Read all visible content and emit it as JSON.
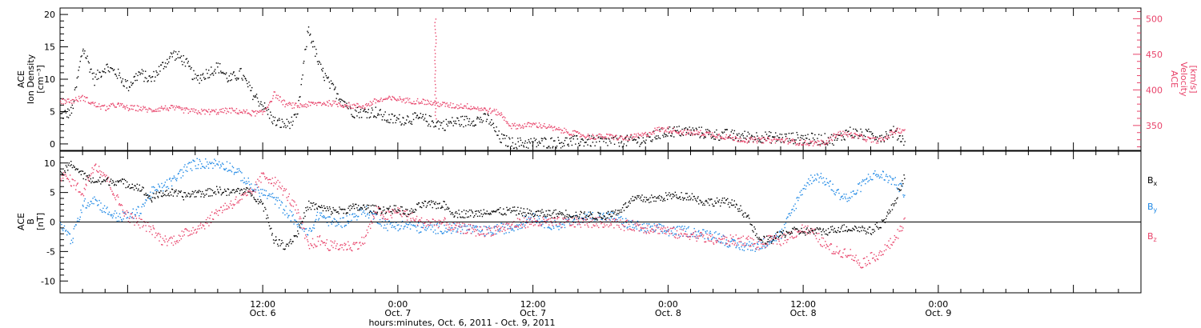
{
  "chart_data": [
    {
      "type": "scatter",
      "panel": "top",
      "ylabel_left": [
        "ACE",
        "Ion Density",
        "[cm⁻³]"
      ],
      "ylabel_right": [
        "ACE",
        "Velocity",
        "[km/s]"
      ],
      "ylim_left": [
        -1,
        21
      ],
      "ylim_right": [
        315,
        515
      ],
      "yticks_left": [
        "0",
        "5",
        "10",
        "15",
        "20"
      ],
      "yticks_right": [
        "350",
        "400",
        "450",
        "500"
      ],
      "colors": {
        "density": "#000000",
        "velocity": "#e8436a"
      },
      "series": [
        {
          "name": "Ion Density",
          "color": "#000000",
          "axis": "left",
          "t": [
            0,
            1,
            2,
            3,
            4,
            5,
            6,
            7,
            8,
            9,
            10,
            11,
            12,
            13,
            14,
            15,
            16,
            17,
            18,
            19,
            20,
            21,
            22,
            23,
            24,
            25,
            26,
            27,
            28,
            29,
            30,
            31,
            32,
            33,
            34,
            35,
            36,
            37,
            38,
            39,
            40,
            41,
            42,
            43,
            44,
            45,
            46,
            47,
            48,
            49,
            50,
            51,
            52,
            53,
            54,
            55,
            56,
            57,
            58,
            59,
            60,
            61,
            62,
            63,
            64,
            65,
            66,
            67,
            68,
            69,
            70,
            71,
            72,
            73,
            74,
            75
          ],
          "values": [
            4.5,
            5,
            15,
            10,
            12,
            11,
            9,
            11,
            10,
            12,
            14,
            13,
            10,
            11,
            12,
            10,
            11,
            8,
            6,
            3.5,
            3,
            4,
            18,
            12,
            9,
            7,
            5,
            5,
            5,
            4,
            3.8,
            4,
            4,
            3.5,
            3,
            3.5,
            3.6,
            3.8,
            4,
            1,
            0.2,
            0.2,
            0.2,
            0.3,
            0.3,
            0.4,
            0.5,
            0.5,
            0.5,
            0.5,
            0.5,
            0.6,
            0.6,
            1.5,
            2,
            2,
            2,
            1.8,
            1.5,
            1.5,
            1.3,
            1.2,
            1.2,
            1.1,
            1.0,
            1.0,
            1.0,
            0.8,
            0.8,
            0.8,
            2,
            1.5,
            1.5,
            1.2,
            2,
            0.5
          ]
        },
        {
          "name": "Velocity",
          "color": "#e8436a",
          "axis": "right",
          "t": [
            0,
            1,
            2,
            3,
            4,
            5,
            6,
            7,
            8,
            9,
            10,
            11,
            12,
            13,
            14,
            15,
            16,
            17,
            18,
            19,
            20,
            21,
            22,
            23,
            24,
            25,
            26,
            27,
            28,
            29,
            30,
            31,
            32,
            33,
            34,
            35,
            36,
            37,
            38,
            39,
            40,
            41,
            42,
            43,
            44,
            45,
            46,
            47,
            48,
            49,
            50,
            51,
            52,
            53,
            54,
            55,
            56,
            57,
            58,
            59,
            60,
            61,
            62,
            63,
            64,
            65,
            66,
            67,
            68,
            69,
            70,
            71,
            72,
            73,
            74,
            75
          ],
          "values": [
            385,
            385,
            390,
            380,
            375,
            380,
            375,
            375,
            372,
            375,
            375,
            372,
            370,
            370,
            370,
            372,
            370,
            368,
            368,
            395,
            380,
            378,
            380,
            382,
            382,
            380,
            378,
            378,
            385,
            388,
            388,
            385,
            385,
            382,
            380,
            378,
            378,
            375,
            372,
            368,
            350,
            350,
            352,
            350,
            345,
            342,
            338,
            335,
            335,
            335,
            332,
            335,
            338,
            345,
            345,
            342,
            340,
            340,
            338,
            335,
            332,
            330,
            330,
            330,
            330,
            328,
            326,
            326,
            326,
            340,
            338,
            335,
            330,
            330,
            342,
            345
          ]
        }
      ],
      "annotations": [
        {
          "type": "spike",
          "t": 33.3,
          "velocity": 505
        }
      ]
    },
    {
      "type": "scatter",
      "panel": "bottom",
      "ylabel_left": [
        "ACE",
        "B",
        "[nT]"
      ],
      "ylim": [
        -12,
        12
      ],
      "yticks": [
        "-10",
        "-5",
        "0",
        "5",
        "10"
      ],
      "zero_line": true,
      "series": [
        {
          "name": "Bx",
          "label_main": "B",
          "label_sub": "x",
          "color": "#000000",
          "t": [
            0,
            1,
            2,
            3,
            4,
            5,
            6,
            7,
            8,
            9,
            10,
            11,
            12,
            13,
            14,
            15,
            16,
            17,
            18,
            19,
            20,
            21,
            22,
            23,
            24,
            25,
            26,
            27,
            28,
            29,
            30,
            31,
            32,
            33,
            34,
            35,
            36,
            37,
            38,
            39,
            40,
            41,
            42,
            43,
            44,
            45,
            46,
            47,
            48,
            49,
            50,
            51,
            52,
            53,
            54,
            55,
            56,
            57,
            58,
            59,
            60,
            61,
            62,
            63,
            64,
            65,
            66,
            67,
            68,
            69,
            70,
            71,
            72,
            73,
            74,
            75
          ],
          "values": [
            8,
            10,
            8,
            7,
            7,
            7,
            6.5,
            6,
            4,
            5,
            5,
            4.5,
            5,
            5,
            5.5,
            5,
            5.5,
            5,
            3,
            -3,
            -4,
            -2,
            3,
            2.5,
            2,
            2,
            2.5,
            2.5,
            2.2,
            2.2,
            2.2,
            1.5,
            3,
            3,
            3,
            1.5,
            1.5,
            1.5,
            2,
            1.8,
            2,
            1.8,
            1.5,
            1.5,
            1.5,
            1.5,
            1.2,
            1.2,
            1.0,
            1.5,
            2.5,
            4,
            4,
            4,
            4.5,
            4.5,
            4.5,
            3.5,
            3.5,
            3.5,
            3.0,
            1,
            -3,
            -3,
            -2,
            -1.5,
            -1.5,
            -1.5,
            -1.5,
            -1,
            -1,
            -1,
            -1.5,
            0,
            3,
            8
          ]
        },
        {
          "name": "By",
          "label_main": "B",
          "label_sub": "y",
          "color": "#1e88e5",
          "t": [
            0,
            1,
            2,
            3,
            4,
            5,
            6,
            7,
            8,
            9,
            10,
            11,
            12,
            13,
            14,
            15,
            16,
            17,
            18,
            19,
            20,
            21,
            22,
            23,
            24,
            25,
            26,
            27,
            28,
            29,
            30,
            31,
            32,
            33,
            34,
            35,
            36,
            37,
            38,
            39,
            40,
            41,
            42,
            43,
            44,
            45,
            46,
            47,
            48,
            49,
            50,
            51,
            52,
            53,
            54,
            55,
            56,
            57,
            58,
            59,
            60,
            61,
            62,
            63,
            64,
            65,
            66,
            67,
            68,
            69,
            70,
            71,
            72,
            73,
            74,
            75
          ],
          "values": [
            0,
            -3,
            3,
            4,
            2,
            1,
            1,
            2,
            5,
            6,
            7,
            9,
            10,
            10,
            10,
            9.5,
            8,
            6,
            5,
            4,
            2,
            0,
            -2,
            1.5,
            0,
            0,
            1,
            2,
            1,
            -0.5,
            -0.5,
            -0.5,
            -1,
            -1,
            -1,
            -1,
            -1,
            -1.5,
            -1.5,
            -1,
            -1,
            0,
            1,
            0,
            -0.5,
            0,
            0.5,
            1,
            1,
            1,
            0,
            -0.5,
            -1,
            -1,
            -1.5,
            -1.5,
            -1.5,
            -2,
            -2,
            -3,
            -4,
            -4,
            -4,
            -3,
            -2,
            2,
            6,
            8,
            7,
            5,
            4,
            6,
            8,
            8,
            7,
            5
          ]
        },
        {
          "name": "Bz",
          "label_main": "B",
          "label_sub": "z",
          "color": "#e8436a",
          "t": [
            0,
            1,
            2,
            3,
            4,
            5,
            6,
            7,
            8,
            9,
            10,
            11,
            12,
            13,
            14,
            15,
            16,
            17,
            18,
            19,
            20,
            21,
            22,
            23,
            24,
            25,
            26,
            27,
            28,
            29,
            30,
            31,
            32,
            33,
            34,
            35,
            36,
            37,
            38,
            39,
            40,
            41,
            42,
            43,
            44,
            45,
            46,
            47,
            48,
            49,
            50,
            51,
            52,
            53,
            54,
            55,
            56,
            57,
            58,
            59,
            60,
            61,
            62,
            63,
            64,
            65,
            66,
            67,
            68,
            69,
            70,
            71,
            72,
            73,
            74,
            75
          ],
          "values": [
            8,
            7,
            5,
            10,
            8,
            4,
            1,
            0,
            -1,
            -3,
            -3,
            -2,
            -1,
            0,
            2,
            3,
            4,
            5,
            8,
            7,
            5,
            2,
            -4,
            -3,
            -4,
            -4,
            -4,
            -3,
            2,
            1,
            2,
            1,
            0,
            0,
            0,
            -1,
            -1,
            -1.5,
            -1.5,
            -1,
            -0.5,
            0,
            0,
            0,
            0,
            0,
            0,
            0,
            0,
            0,
            -0.5,
            -0.5,
            -1,
            -1,
            -1.5,
            -2,
            -2,
            -2.5,
            -3,
            -3,
            -3,
            -3,
            -4,
            -3,
            -3,
            -2,
            -1,
            -2,
            -4,
            -5,
            -5,
            -7,
            -6,
            -5,
            -3,
            0
          ]
        }
      ]
    }
  ],
  "x_axis": {
    "tick_times": [
      "12:00",
      "0:00",
      "12:00",
      "0:00",
      "12:00",
      "0:00"
    ],
    "tick_dates": [
      "Oct. 6",
      "Oct. 7",
      "Oct. 7",
      "Oct. 8",
      "Oct. 8",
      "Oct. 9"
    ],
    "xlabel": "hours:minutes, Oct.  6, 2011 - Oct.  9, 2011"
  }
}
